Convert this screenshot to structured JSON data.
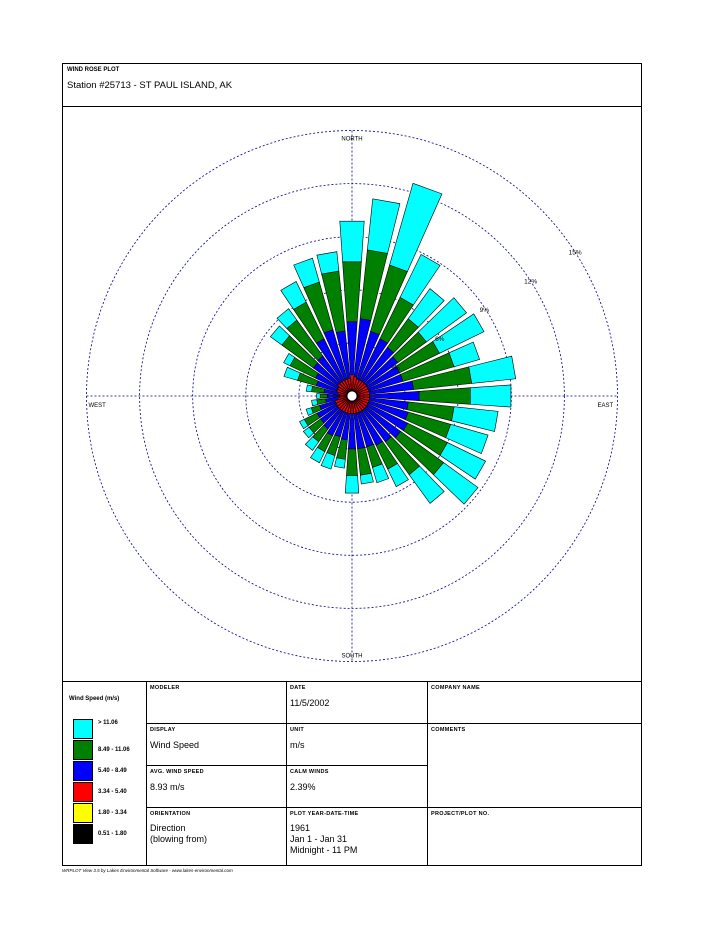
{
  "header": {
    "plot_label": "WIND ROSE PLOT",
    "station": "Station #25713 -  ST PAUL ISLAND, AK"
  },
  "chart_data": {
    "type": "windrose",
    "directions_deg": [
      0,
      10,
      20,
      30,
      40,
      50,
      60,
      70,
      80,
      90,
      100,
      110,
      120,
      130,
      140,
      150,
      160,
      170,
      180,
      190,
      200,
      210,
      220,
      230,
      240,
      250,
      260,
      270,
      280,
      290,
      300,
      310,
      320,
      330,
      340,
      350
    ],
    "ring_labels": [
      "3%",
      "6%",
      "9%",
      "12%",
      "15%"
    ],
    "ring_values": [
      3,
      6,
      9,
      12,
      15
    ],
    "compass_labels": {
      "north": "NORTH",
      "south": "SOUTH",
      "east": "EAST",
      "west": "WEST"
    },
    "speed_bins": [
      {
        "label": "> 11.06",
        "color": "#00ffff"
      },
      {
        "label": "8.49 - 11.06",
        "color": "#008000"
      },
      {
        "label": "5.40 - 8.49",
        "color": "#0000ff"
      },
      {
        "label": "3.34 - 5.40",
        "color": "#ff0000"
      },
      {
        "label": "1.80 - 3.34",
        "color": "#ffff00"
      },
      {
        "label": "0.51 - 1.80",
        "color": "#000000"
      }
    ],
    "cumulative_percent": [
      [
        0.3,
        1.2,
        4.2,
        7.6,
        9.9
      ],
      [
        0.3,
        1.1,
        4.4,
        8.3,
        11.2
      ],
      [
        0.3,
        1.0,
        3.8,
        7.7,
        12.5
      ],
      [
        0.3,
        1.0,
        3.6,
        6.2,
        8.9
      ],
      [
        0.3,
        1.0,
        3.4,
        5.4,
        7.5
      ],
      [
        0.3,
        1.0,
        3.2,
        5.2,
        8.0
      ],
      [
        0.3,
        1.0,
        3.0,
        5.5,
        8.3
      ],
      [
        0.3,
        1.0,
        3.0,
        6.0,
        7.5
      ],
      [
        0.3,
        1.0,
        3.5,
        6.8,
        9.3
      ],
      [
        0.3,
        1.0,
        3.8,
        6.7,
        9.0
      ],
      [
        0.3,
        1.0,
        3.2,
        5.8,
        8.3
      ],
      [
        0.3,
        1.0,
        3.3,
        5.8,
        8.0
      ],
      [
        0.3,
        1.0,
        3.5,
        6.0,
        8.4
      ],
      [
        0.3,
        1.0,
        3.4,
        6.4,
        8.8
      ],
      [
        0.3,
        1.0,
        3.2,
        5.5,
        7.5
      ],
      [
        0.3,
        1.0,
        3.1,
        4.6,
        5.7
      ],
      [
        0.3,
        1.0,
        3.0,
        4.2,
        5.1
      ],
      [
        0.3,
        1.0,
        3.0,
        4.5,
        5.0
      ],
      [
        0.3,
        1.0,
        3.0,
        4.5,
        5.5
      ],
      [
        0.3,
        1.0,
        2.5,
        3.6,
        4.1
      ],
      [
        0.3,
        1.0,
        2.4,
        3.5,
        4.3
      ],
      [
        0.3,
        1.0,
        2.5,
        3.5,
        4.2
      ],
      [
        0.3,
        1.0,
        2.3,
        3.2,
        3.8
      ],
      [
        0.3,
        1.0,
        2.2,
        3.0,
        3.4
      ],
      [
        0.3,
        1.0,
        2.2,
        3.0,
        3.3
      ],
      [
        0.3,
        1.0,
        1.9,
        2.4,
        2.7
      ],
      [
        0.3,
        0.8,
        1.5,
        2.0,
        2.3
      ],
      [
        0.3,
        0.7,
        1.4,
        1.8,
        2.0
      ],
      [
        0.3,
        0.8,
        1.6,
        2.3,
        2.6
      ],
      [
        0.3,
        0.9,
        2.1,
        3.2,
        4.0
      ],
      [
        0.3,
        0.9,
        2.3,
        3.9,
        4.3
      ],
      [
        0.3,
        1.0,
        2.7,
        4.9,
        5.7
      ],
      [
        0.3,
        1.0,
        2.8,
        5.3,
        6.1
      ],
      [
        0.3,
        1.0,
        3.6,
        5.9,
        7.2
      ],
      [
        0.3,
        1.0,
        3.9,
        6.7,
        8.1
      ],
      [
        0.3,
        1.0,
        3.7,
        7.1,
        8.2
      ]
    ],
    "grid": true,
    "scale_max_percent": 15
  },
  "legend": {
    "title": "Wind Speed (m/s)"
  },
  "info": {
    "modeler_label": "MODELER",
    "modeler_value": "",
    "date_label": "DATE",
    "date_value": "11/5/2002",
    "company_label": "COMPANY NAME",
    "company_value": "",
    "display_label": "DISPLAY",
    "display_value": "Wind Speed",
    "unit_label": "UNIT",
    "unit_value": "m/s",
    "comments_label": "COMMENTS",
    "comments_value": "",
    "avg_label": "AVG. WIND SPEED",
    "avg_value": "8.93 m/s",
    "calm_label": "CALM WINDS",
    "calm_value": "2.39%",
    "orientation_label": "ORIENTATION",
    "orientation_line1": "Direction",
    "orientation_line2": "(blowing from)",
    "plot_year_label": "PLOT YEAR-DATE-TIME",
    "plot_year_line1": "1961",
    "plot_year_line2": "Jan 1 - Jan 31",
    "plot_year_line3": "Midnight  -  11 PM",
    "project_label": "PROJECT/PLOT NO.",
    "project_value": ""
  },
  "footer": {
    "text": "WRPLOT View 3.5 by Lakes Environmental Software - www.lakes-environmental.com"
  }
}
